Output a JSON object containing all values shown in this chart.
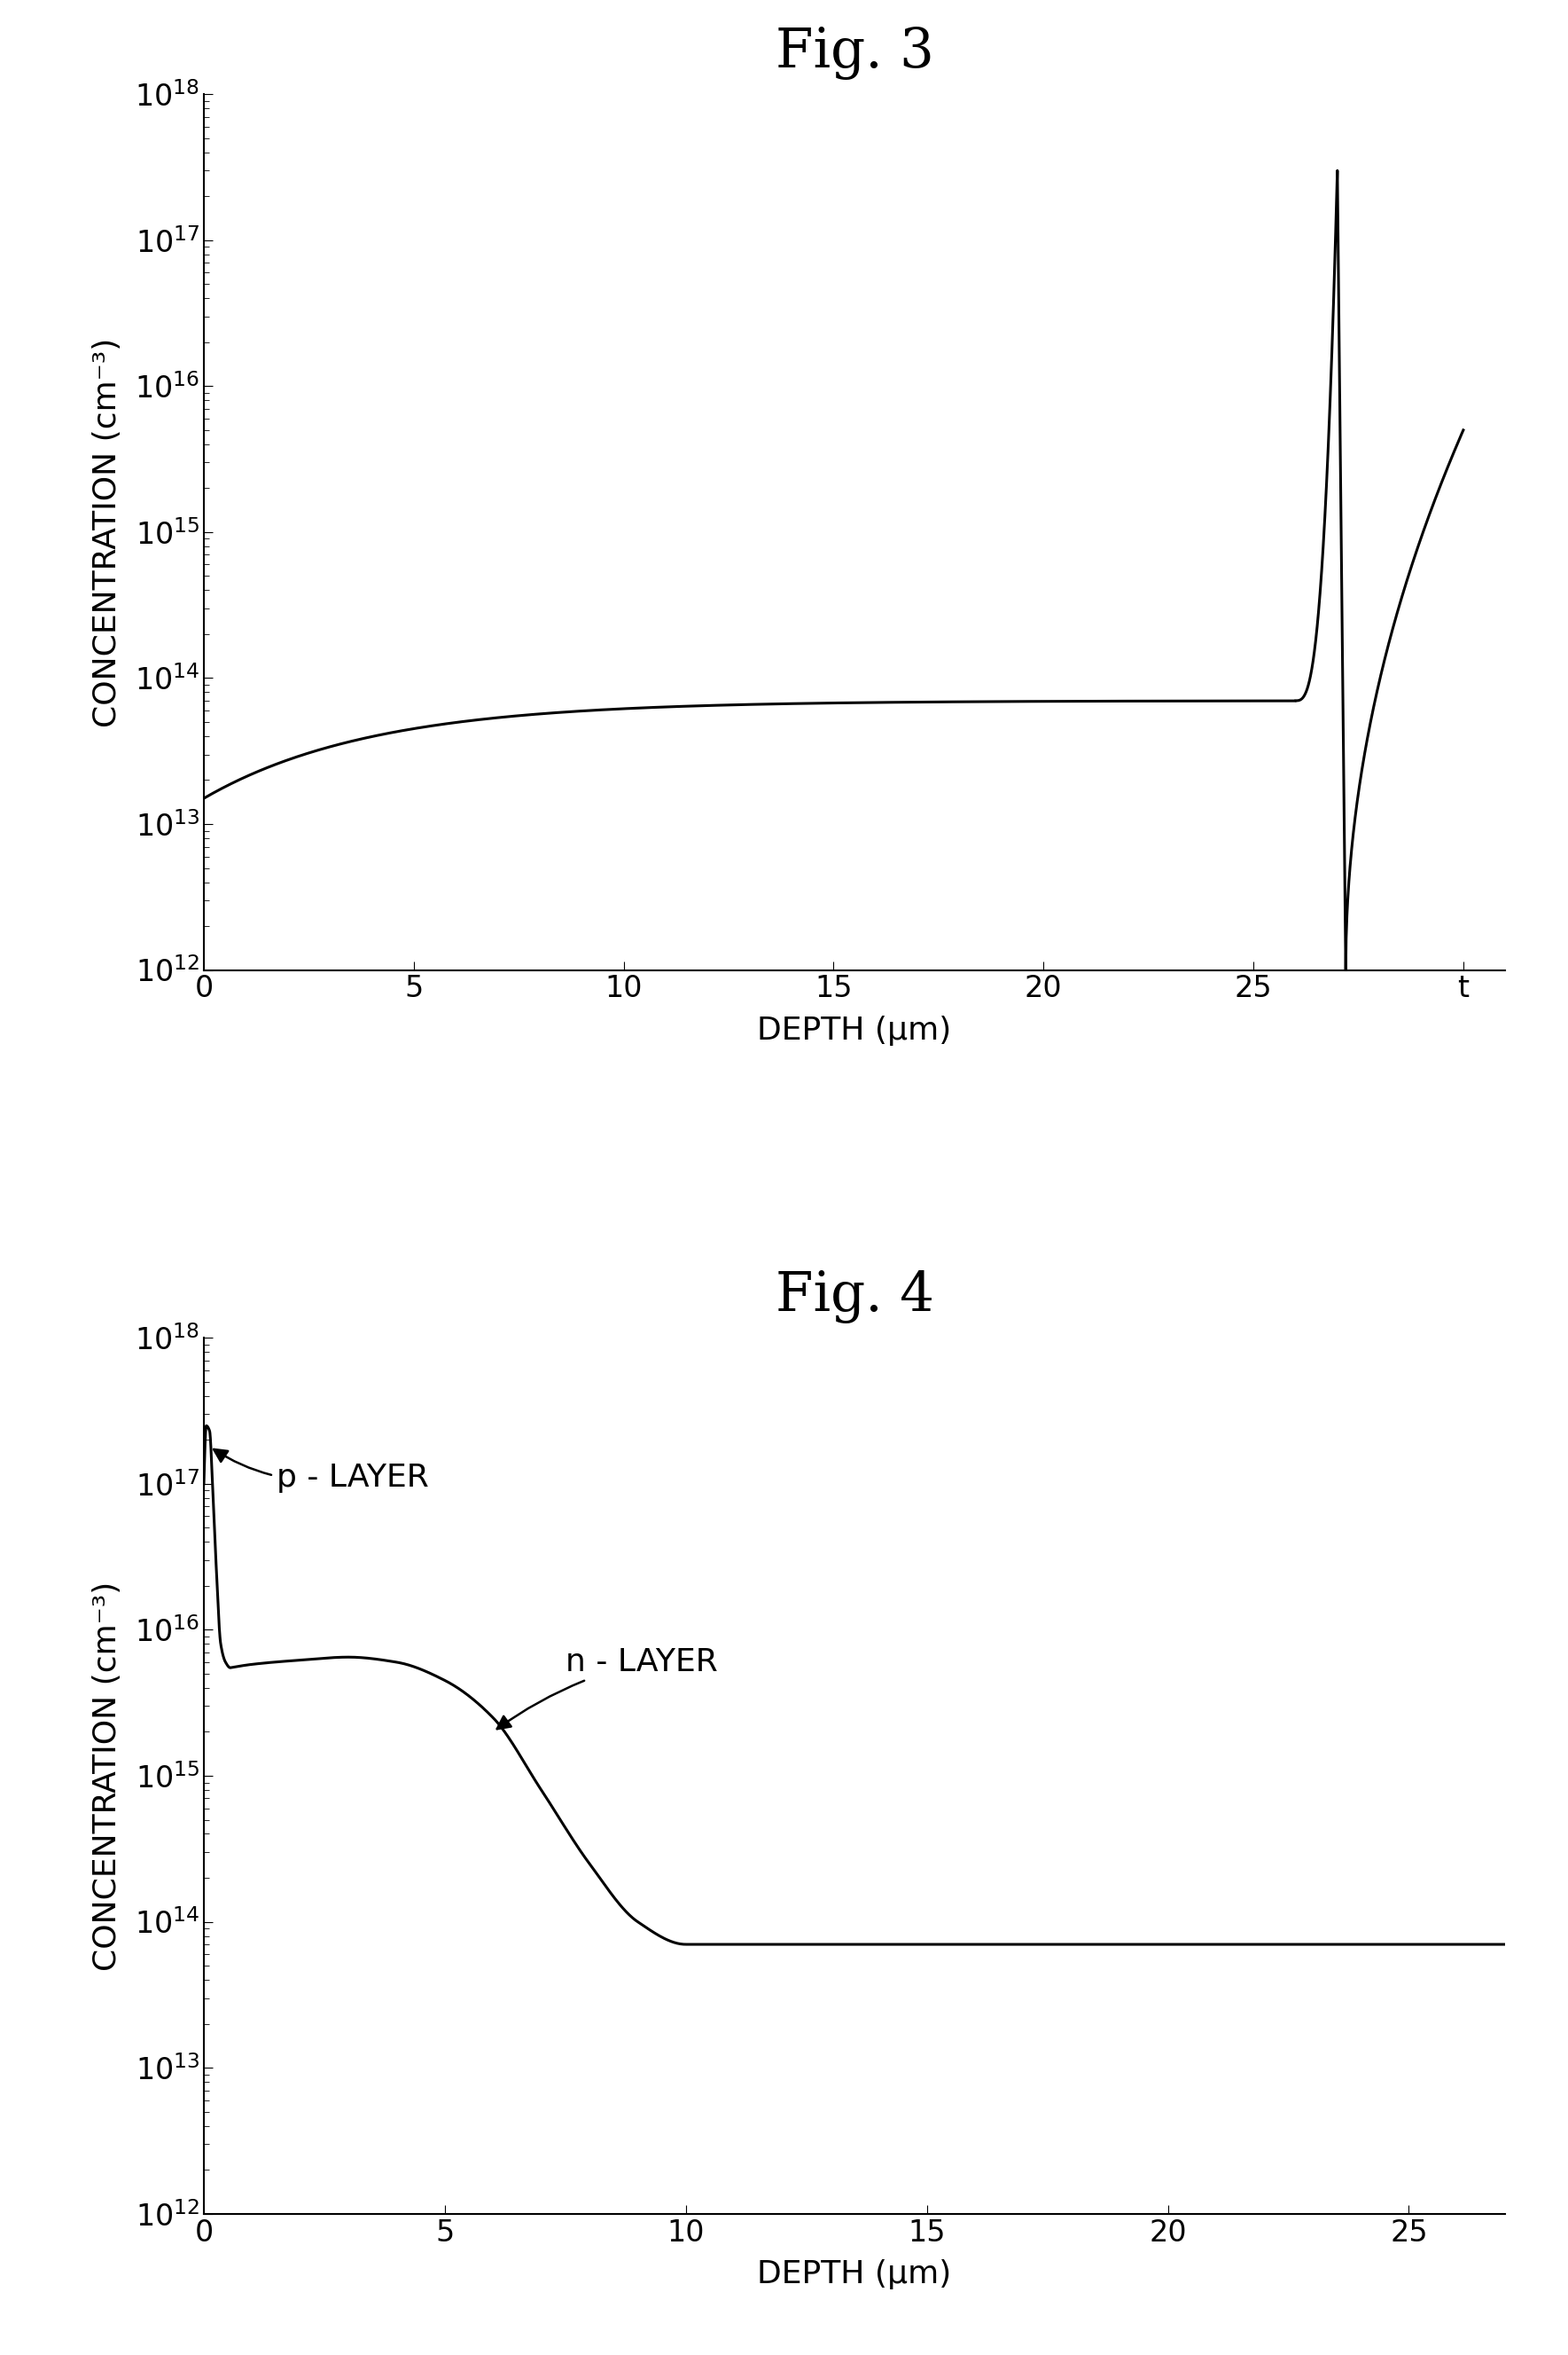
{
  "fig3_title": "Fig. 3",
  "fig4_title": "Fig. 4",
  "ylabel": "CONCENTRATION (cm⁻³)",
  "xlabel": "DEPTH (μm)",
  "fig3_xlim": [
    0,
    31
  ],
  "fig3_ylim_log": [
    12,
    18
  ],
  "fig4_xlim": [
    0,
    27
  ],
  "fig4_ylim_log": [
    12,
    18
  ],
  "fig3_xticks": [
    0,
    5,
    10,
    15,
    20,
    25,
    30
  ],
  "fig3_xtick_labels": [
    "0",
    "5",
    "10",
    "15",
    "20",
    "25",
    "t"
  ],
  "fig4_xticks": [
    0,
    5,
    10,
    15,
    20,
    25
  ],
  "fig4_xtick_labels": [
    "0",
    "5",
    "10",
    "15",
    "20",
    "25"
  ],
  "line_color": "#000000",
  "line_width": 2.2,
  "background_color": "#ffffff",
  "title_fontsize": 44,
  "axis_label_fontsize": 26,
  "tick_fontsize": 24,
  "annotation_fontsize": 26
}
